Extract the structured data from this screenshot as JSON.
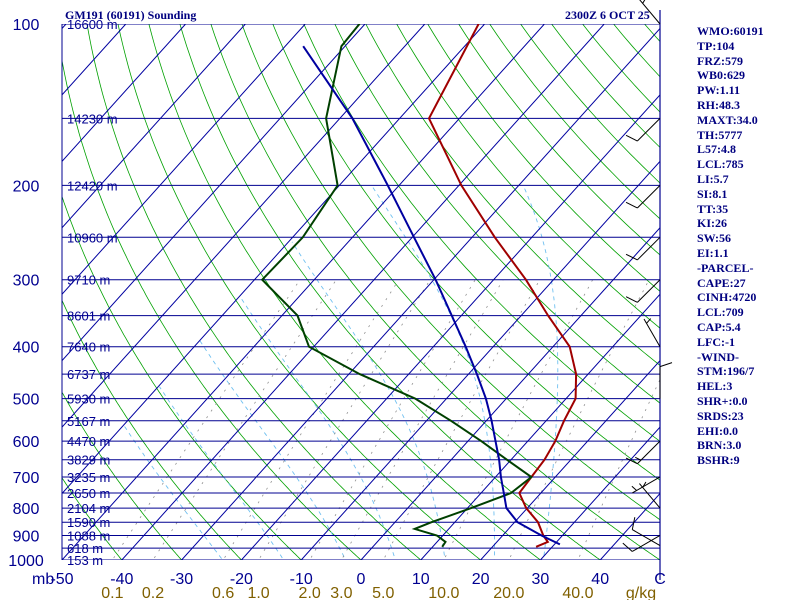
{
  "header": {
    "title_left": "GM191 (60191) Sounding",
    "title_right": "2300Z  6 OCT 25"
  },
  "indices": [
    "WMO:60191",
    "TP:104",
    "FRZ:579",
    "WB0:629",
    "PW:1.11",
    "RH:48.3",
    "MAXT:34.0",
    "TH:5777",
    "L57:4.8",
    "LCL:785",
    "LI:5.7",
    "SI:8.1",
    "TT:35",
    "KI:26",
    "SW:56",
    "EI:1.1",
    "-PARCEL-",
    "CAPE:27",
    "CINH:4720",
    "LCL:709",
    "CAP:5.4",
    "LFC:-1",
    "-WIND-",
    "STM:196/7",
    "HEL:3",
    "SHR+:0.0",
    "SRDS:23",
    "EHI:0.0",
    "BRN:3.0",
    "BSHR:9"
  ],
  "colors": {
    "isobar": "#000090",
    "isotherm": "#0000a0",
    "dry_adiabat": "#00a000",
    "moist_adiabat": "#70c0f0",
    "mixing_ratio": "#909090",
    "temperature": "#a00000",
    "dewpoint": "#004000",
    "parcel": "#0000a0",
    "title": "#000080",
    "mixing_label": "#806000"
  },
  "chart_data": {
    "type": "line",
    "title": "GM191 (60191) Sounding",
    "xlabel": "C",
    "ylabel": "mb",
    "xlim": [
      -50,
      50
    ],
    "ylim": [
      1000,
      100
    ],
    "pressure_ticks": [
      {
        "p": 100,
        "label": "100"
      },
      {
        "p": 200,
        "label": "200"
      },
      {
        "p": 300,
        "label": "300"
      },
      {
        "p": 400,
        "label": "400"
      },
      {
        "p": 500,
        "label": "500"
      },
      {
        "p": 600,
        "label": "600"
      },
      {
        "p": 700,
        "label": "700"
      },
      {
        "p": 800,
        "label": "800"
      },
      {
        "p": 900,
        "label": "900"
      },
      {
        "p": 1000,
        "label": "1000"
      }
    ],
    "axis_unit_label": "mb",
    "temp_ticks": [
      {
        "t": -50,
        "label": "-50"
      },
      {
        "t": -40,
        "label": "-40"
      },
      {
        "t": -30,
        "label": "-30"
      },
      {
        "t": -20,
        "label": "-20"
      },
      {
        "t": -10,
        "label": "-10"
      },
      {
        "t": 0,
        "label": "0"
      },
      {
        "t": 10,
        "label": "10"
      },
      {
        "t": 20,
        "label": "20"
      },
      {
        "t": 30,
        "label": "30"
      },
      {
        "t": 40,
        "label": "40"
      }
    ],
    "temp_unit_label": "C",
    "mixing_ratio_labels": [
      {
        "w": 0.1,
        "label": "0.1"
      },
      {
        "w": 0.2,
        "label": "0.2"
      },
      {
        "w": 0.6,
        "label": "0.6"
      },
      {
        "w": 1.0,
        "label": "1.0"
      },
      {
        "w": 2.0,
        "label": "2.0"
      },
      {
        "w": 3.0,
        "label": "3.0"
      },
      {
        "w": 5.0,
        "label": "5.0"
      },
      {
        "w": 10.0,
        "label": "10.0"
      },
      {
        "w": 20.0,
        "label": "20.0"
      },
      {
        "w": 40.0,
        "label": "40.0"
      }
    ],
    "mixing_unit_label": "g/kg",
    "height_labels": [
      {
        "p": 100,
        "label": "16600 m"
      },
      {
        "p": 150,
        "label": "14230 m"
      },
      {
        "p": 200,
        "label": "12420 m"
      },
      {
        "p": 250,
        "label": "10960 m"
      },
      {
        "p": 300,
        "label": "9710 m"
      },
      {
        "p": 350,
        "label": "8601 m"
      },
      {
        "p": 400,
        "label": "7640 m"
      },
      {
        "p": 450,
        "label": "6737 m"
      },
      {
        "p": 500,
        "label": "5930 m"
      },
      {
        "p": 550,
        "label": "5167 m"
      },
      {
        "p": 600,
        "label": "4470 m"
      },
      {
        "p": 650,
        "label": "3829 m"
      },
      {
        "p": 700,
        "label": "3235 m"
      },
      {
        "p": 750,
        "label": "2650 m"
      },
      {
        "p": 800,
        "label": "2104 m"
      },
      {
        "p": 850,
        "label": "1590 m"
      },
      {
        "p": 900,
        "label": "1088 m"
      },
      {
        "p": 950,
        "label": "618 m"
      },
      {
        "p": 1000,
        "label": "153 m"
      }
    ],
    "series": [
      {
        "name": "temperature",
        "points": [
          [
            945,
            27.3
          ],
          [
            925,
            28.5
          ],
          [
            900,
            26.8
          ],
          [
            850,
            23.9
          ],
          [
            800,
            19.8
          ],
          [
            750,
            16.4
          ],
          [
            700,
            16.0
          ],
          [
            650,
            15.6
          ],
          [
            600,
            14.6
          ],
          [
            550,
            13.0
          ],
          [
            500,
            11.6
          ],
          [
            450,
            8.0
          ],
          [
            400,
            2.8
          ],
          [
            350,
            -5.5
          ],
          [
            300,
            -14.6
          ],
          [
            250,
            -26.2
          ],
          [
            200,
            -39.6
          ],
          [
            150,
            -55.1
          ],
          [
            100,
            -61.0
          ],
          [
            90,
            -63.6
          ]
        ]
      },
      {
        "name": "dewpoint",
        "points": [
          [
            945,
            11.6
          ],
          [
            925,
            11.4
          ],
          [
            900,
            9.0
          ],
          [
            875,
            4.3
          ],
          [
            850,
            6.1
          ],
          [
            800,
            10.6
          ],
          [
            750,
            15.0
          ],
          [
            700,
            16.0
          ],
          [
            650,
            9.3
          ],
          [
            600,
            2.2
          ],
          [
            550,
            -5.9
          ],
          [
            500,
            -15.2
          ],
          [
            450,
            -28.2
          ],
          [
            400,
            -40.8
          ],
          [
            350,
            -47.4
          ],
          [
            300,
            -58.7
          ],
          [
            250,
            -58.3
          ],
          [
            200,
            -60.3
          ],
          [
            150,
            -72.3
          ],
          [
            110,
            -80.6
          ],
          [
            90,
            -81.3
          ]
        ]
      },
      {
        "name": "parcel",
        "points": [
          [
            935,
            30.9
          ],
          [
            900,
            26.5
          ],
          [
            850,
            20.5
          ],
          [
            800,
            16.5
          ],
          [
            750,
            13.8
          ],
          [
            700,
            10.9
          ],
          [
            650,
            8.0
          ],
          [
            600,
            4.6
          ],
          [
            550,
            0.9
          ],
          [
            500,
            -3.4
          ],
          [
            450,
            -8.6
          ],
          [
            400,
            -14.6
          ],
          [
            350,
            -21.6
          ],
          [
            300,
            -29.7
          ],
          [
            250,
            -39.7
          ],
          [
            200,
            -51.9
          ],
          [
            150,
            -67.9
          ],
          [
            110,
            -87.0
          ]
        ]
      }
    ],
    "winds": [
      {
        "p": 100,
        "dir": 320,
        "kt": 15
      },
      {
        "p": 150,
        "dir": 225,
        "kt": 10
      },
      {
        "p": 200,
        "dir": 225,
        "kt": 10
      },
      {
        "p": 250,
        "dir": 225,
        "kt": 10
      },
      {
        "p": 300,
        "dir": 225,
        "kt": 10
      },
      {
        "p": 400,
        "dir": 330,
        "kt": 5
      },
      {
        "p": 500,
        "dir": 0,
        "kt": 10
      },
      {
        "p": 600,
        "dir": 225,
        "kt": 15
      },
      {
        "p": 700,
        "dir": 240,
        "kt": 5
      },
      {
        "p": 800,
        "dir": 320,
        "kt": 5
      },
      {
        "p": 900,
        "dir": 240,
        "kt": 10
      },
      {
        "p": 940,
        "dir": 300,
        "kt": 10
      }
    ]
  }
}
